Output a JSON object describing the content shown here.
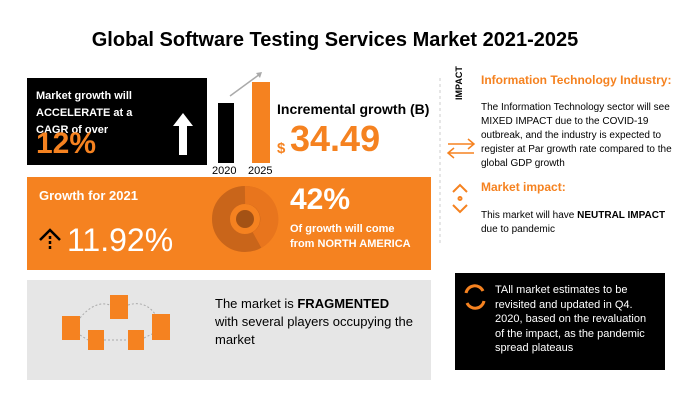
{
  "header": {
    "title": "Global Software Testing Services Market 2021-2025"
  },
  "cagr": {
    "label": "Market growth will ACCELERATE at a CAGR of over",
    "value": "12%"
  },
  "incremental": {
    "years": [
      "2020",
      "2025"
    ],
    "label": "Incremental growth (B)",
    "currency": "$",
    "value": "34.49"
  },
  "growth_2021": {
    "label": "Growth for 2021",
    "value": "11.92%"
  },
  "region": {
    "share": "42%",
    "text": "Of growth will come from NORTH AMERICA"
  },
  "fragmented": {
    "text_before": "The market is ",
    "bold": "FRAGMENTED",
    "text_after": " with several players occupying the market"
  },
  "impact": {
    "tag": "IMPACT",
    "industry_title": "Information Technology Industry:",
    "industry_text": "The Information Technology sector will see MIXED IMPACT due to the COVID-19 outbreak, and the industry is expected to register at Par growth rate compared to the global GDP growth",
    "market_title": "Market impact:",
    "market_text_before": "This market will have ",
    "market_bold": "NEUTRAL IMPACT",
    "market_text_after": " due to pandemic"
  },
  "note": "TAll market estimates to be revisited and updated in Q4. 2020, based on the revaluation of the impact, as the pandemic spread plateaus"
}
